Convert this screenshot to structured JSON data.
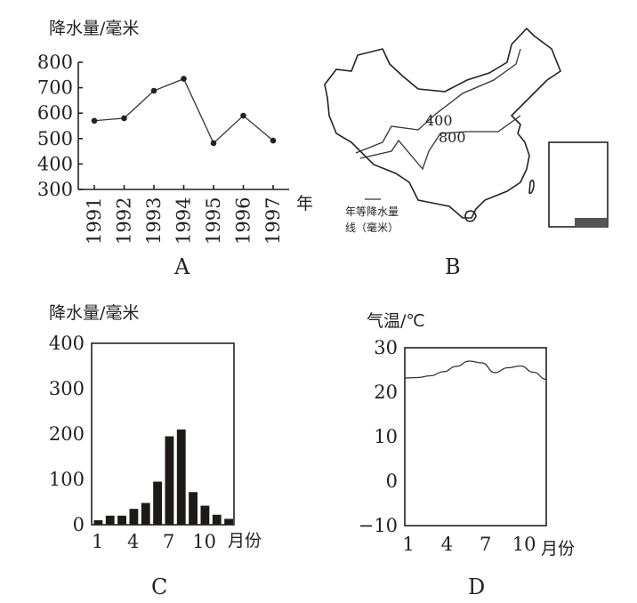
{
  "chart_data": [
    {
      "panel": "A",
      "type": "line",
      "ylabel": "降水量/毫米",
      "xlabel": "年",
      "x": [
        "1991",
        "1992",
        "1993",
        "1994",
        "1995",
        "1996",
        "1997"
      ],
      "values": [
        570,
        580,
        688,
        735,
        482,
        590,
        492
      ],
      "ylim": [
        300,
        800
      ],
      "yticks": [
        300,
        400,
        500,
        600,
        700,
        800
      ],
      "grid": false
    },
    {
      "panel": "B",
      "type": "map",
      "isolines": [
        "400",
        "800"
      ],
      "legend": [
        "年等降水量",
        "线（毫米）"
      ]
    },
    {
      "panel": "C",
      "type": "bar",
      "ylabel": "降水量/毫米",
      "xlabel": "月份",
      "categories": [
        1,
        2,
        3,
        4,
        5,
        6,
        7,
        8,
        9,
        10,
        11,
        12
      ],
      "values": [
        10,
        20,
        20,
        35,
        48,
        95,
        195,
        210,
        72,
        42,
        22,
        13
      ],
      "ylim": [
        0,
        400
      ],
      "yticks": [
        0,
        100,
        200,
        300,
        400
      ],
      "xticks": [
        "1",
        "4",
        "7",
        "10"
      ],
      "grid": false
    },
    {
      "panel": "D",
      "type": "line",
      "ylabel": "气温/℃",
      "xlabel": "月份",
      "categories": [
        1,
        2,
        3,
        4,
        5,
        6,
        7,
        8,
        9,
        10,
        11,
        12
      ],
      "values": [
        23.2,
        23.3,
        23.7,
        24.6,
        25.8,
        27.0,
        26.6,
        24.4,
        25.5,
        25.9,
        24.5,
        22.9
      ],
      "ylim": [
        -10,
        30
      ],
      "yticks": [
        -10,
        0,
        10,
        20,
        30
      ],
      "xticks": [
        "1",
        "4",
        "7",
        "10"
      ],
      "grid": false
    }
  ]
}
